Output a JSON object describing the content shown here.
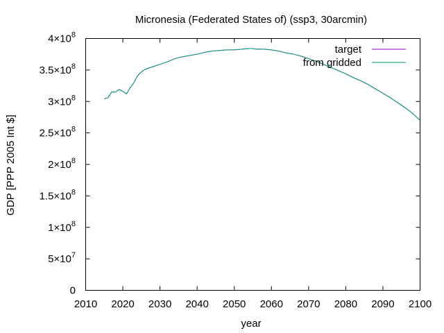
{
  "chart_data": {
    "type": "line",
    "title": "Micronesia (Federated States of) (ssp3, 30arcmin)",
    "xlabel": "year",
    "ylabel": "GDP [PPP 2005 Int $]",
    "xlim": [
      2010,
      2100
    ],
    "ylim": [
      0,
      400000000
    ],
    "x_ticks": [
      "2010",
      "2020",
      "2030",
      "2040",
      "2050",
      "2060",
      "2070",
      "2080",
      "2090",
      "2100"
    ],
    "y_ticks": [
      {
        "value": 0,
        "mant": "0",
        "exp": ""
      },
      {
        "value": 50000000,
        "mant": "5×10",
        "exp": "7"
      },
      {
        "value": 100000000,
        "mant": "1×10",
        "exp": "8"
      },
      {
        "value": 150000000,
        "mant": "1.5×10",
        "exp": "8"
      },
      {
        "value": 200000000,
        "mant": "2×10",
        "exp": "8"
      },
      {
        "value": 250000000,
        "mant": "2.5×10",
        "exp": "8"
      },
      {
        "value": 300000000,
        "mant": "3×10",
        "exp": "8"
      },
      {
        "value": 350000000,
        "mant": "3.5×10",
        "exp": "8"
      },
      {
        "value": 400000000,
        "mant": "4×10",
        "exp": "8"
      }
    ],
    "grid": false,
    "legend_position": "top-right",
    "series": [
      {
        "name": "target",
        "color": "#9400d3",
        "x": [
          2015,
          2016,
          2017,
          2018,
          2019,
          2020,
          2021,
          2022,
          2023,
          2024,
          2025,
          2026,
          2027,
          2028,
          2030,
          2032,
          2034,
          2036,
          2038,
          2040,
          2042,
          2044,
          2046,
          2048,
          2050,
          2052,
          2054,
          2055,
          2056,
          2058,
          2060,
          2062,
          2064,
          2066,
          2068,
          2070,
          2072,
          2074,
          2076,
          2078,
          2080,
          2082,
          2084,
          2086,
          2088,
          2090,
          2092,
          2094,
          2096,
          2098,
          2100
        ],
        "y": [
          304000000,
          306000000,
          315000000,
          315000000,
          319000000,
          316000000,
          312000000,
          322000000,
          330000000,
          341000000,
          347000000,
          351000000,
          353000000,
          355000000,
          359000000,
          363000000,
          368000000,
          371000000,
          373000000,
          375000000,
          378000000,
          380000000,
          381000000,
          382000000,
          382000000,
          383000000,
          384000000,
          384000000,
          383000000,
          383000000,
          382000000,
          380000000,
          377000000,
          375000000,
          372000000,
          368000000,
          364000000,
          359000000,
          354000000,
          349000000,
          344000000,
          338000000,
          333000000,
          327000000,
          320000000,
          313000000,
          306000000,
          298000000,
          290000000,
          281000000,
          270000000
        ]
      },
      {
        "name": "from gridded",
        "color": "#009e73",
        "x": [
          2015,
          2016,
          2017,
          2018,
          2019,
          2020,
          2021,
          2022,
          2023,
          2024,
          2025,
          2026,
          2027,
          2028,
          2030,
          2032,
          2034,
          2036,
          2038,
          2040,
          2042,
          2044,
          2046,
          2048,
          2050,
          2052,
          2054,
          2055,
          2056,
          2058,
          2060,
          2062,
          2064,
          2066,
          2068,
          2070,
          2072,
          2074,
          2076,
          2078,
          2080,
          2082,
          2084,
          2086,
          2088,
          2090,
          2092,
          2094,
          2096,
          2098,
          2100
        ],
        "y": [
          304000000,
          306000000,
          315000000,
          315000000,
          319000000,
          316000000,
          312000000,
          322000000,
          330000000,
          341000000,
          347000000,
          351000000,
          353000000,
          355000000,
          359000000,
          363000000,
          368000000,
          371000000,
          373000000,
          375000000,
          378000000,
          380000000,
          381000000,
          382000000,
          382000000,
          383000000,
          384000000,
          384000000,
          383000000,
          383000000,
          382000000,
          380000000,
          377000000,
          375000000,
          372000000,
          368000000,
          364000000,
          359000000,
          354000000,
          349000000,
          344000000,
          338000000,
          333000000,
          327000000,
          320000000,
          313000000,
          306000000,
          298000000,
          290000000,
          281000000,
          270000000
        ]
      }
    ]
  }
}
